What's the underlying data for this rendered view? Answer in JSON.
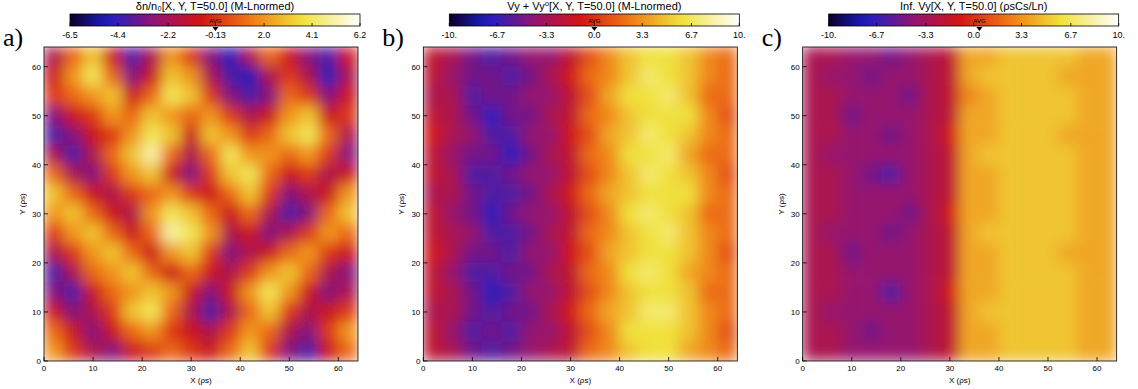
{
  "chart_data": [
    {
      "type": "heatmap",
      "label": "a)",
      "title": "δn/n₀[X, Y, T=50.0] (M-Lnormed)",
      "xlabel": "X (ρs)",
      "ylabel": "Y (ρs)",
      "xlim": [
        0,
        64
      ],
      "ylim": [
        0,
        64
      ],
      "xticks": [
        0,
        10,
        20,
        30,
        40,
        50,
        60
      ],
      "yticks": [
        0,
        10,
        20,
        30,
        40,
        50,
        60
      ],
      "colorbar": {
        "range": [
          -6.5,
          6.2
        ],
        "ticks": [
          -6.5,
          -4.4,
          -2.2,
          -0.13,
          {
            "value": 2.0,
            "label": "2.0"
          },
          4.1,
          6.2
        ],
        "avg": -0.13,
        "avg_label": "AVG"
      },
      "cells": [
        [
          -2,
          1,
          3,
          -1,
          -4,
          -2,
          2,
          0,
          -3,
          -5,
          -2,
          1,
          -1,
          -3,
          -4,
          -1
        ],
        [
          -1,
          2,
          4,
          1,
          -3,
          -1,
          3,
          2,
          -2,
          -4,
          -5,
          -2,
          0,
          -2,
          -5,
          -2
        ],
        [
          0,
          1,
          2,
          3,
          -1,
          1,
          4,
          3,
          0,
          -3,
          -4,
          -3,
          1,
          0,
          -3,
          -1
        ],
        [
          -3,
          -1,
          0,
          2,
          1,
          3,
          2,
          1,
          2,
          0,
          -2,
          -1,
          2,
          3,
          -1,
          0
        ],
        [
          -4,
          -3,
          -1,
          0,
          2,
          4,
          3,
          -1,
          3,
          2,
          0,
          1,
          3,
          4,
          1,
          -2
        ],
        [
          -2,
          -4,
          -2,
          1,
          3,
          5,
          1,
          -2,
          1,
          4,
          2,
          2,
          1,
          2,
          0,
          -3
        ],
        [
          1,
          -2,
          -3,
          0,
          2,
          3,
          -1,
          -3,
          0,
          3,
          4,
          1,
          -1,
          0,
          -2,
          -1
        ],
        [
          3,
          1,
          -1,
          -2,
          0,
          1,
          2,
          0,
          -1,
          1,
          3,
          0,
          -3,
          -2,
          -1,
          2
        ],
        [
          2,
          3,
          1,
          -1,
          -2,
          2,
          4,
          3,
          1,
          -1,
          1,
          -2,
          -4,
          -3,
          1,
          3
        ],
        [
          0,
          2,
          3,
          1,
          -1,
          1,
          5,
          4,
          2,
          -2,
          -1,
          -3,
          -2,
          0,
          2,
          1
        ],
        [
          -2,
          0,
          2,
          3,
          1,
          -1,
          2,
          3,
          0,
          -3,
          -2,
          -1,
          1,
          2,
          0,
          -1
        ],
        [
          -4,
          -2,
          1,
          2,
          3,
          1,
          -1,
          1,
          -1,
          -2,
          0,
          2,
          3,
          1,
          -2,
          -3
        ],
        [
          -3,
          -4,
          -1,
          1,
          2,
          3,
          2,
          -1,
          -3,
          -1,
          2,
          4,
          2,
          -1,
          -3,
          -2
        ],
        [
          -1,
          -3,
          -2,
          0,
          3,
          4,
          1,
          -2,
          -4,
          -2,
          1,
          3,
          0,
          -2,
          -1,
          0
        ],
        [
          1,
          -1,
          -3,
          -1,
          1,
          2,
          0,
          -1,
          -2,
          0,
          2,
          1,
          -2,
          -3,
          0,
          2
        ],
        [
          2,
          0,
          -2,
          -3,
          -1,
          0,
          1,
          0,
          -1,
          1,
          3,
          0,
          -3,
          -4,
          -1,
          1
        ]
      ]
    },
    {
      "type": "heatmap",
      "label": "b)",
      "title": "Vy + Vy⁰[X, Y, T=50.0] (M-Lnormed)",
      "xlabel": "X (ρs)",
      "ylabel": "Y (ρs)",
      "xlim": [
        0,
        64
      ],
      "ylim": [
        0,
        64
      ],
      "xticks": [
        0,
        10,
        20,
        30,
        40,
        50,
        60
      ],
      "yticks": [
        0,
        10,
        20,
        30,
        40,
        50,
        60
      ],
      "colorbar": {
        "range": [
          -10,
          10
        ],
        "ticks": [
          {
            "value": -10,
            "label": "-10."
          },
          -6.7,
          -3.3,
          {
            "value": 0,
            "label": "0.0"
          },
          3.3,
          6.7,
          {
            "value": 10,
            "label": "10."
          }
        ],
        "avg": 0,
        "avg_label": "AVG"
      },
      "cells": [
        [
          -2,
          -3,
          -5,
          -6,
          -5,
          -4,
          -4,
          -2,
          1,
          3,
          5,
          6,
          6,
          5,
          3,
          2
        ],
        [
          -2,
          -4,
          -5,
          -5,
          -6,
          -5,
          -3,
          -1,
          2,
          3,
          5,
          7,
          6,
          5,
          3,
          2
        ],
        [
          -3,
          -3,
          -6,
          -5,
          -5,
          -4,
          -4,
          -2,
          1,
          4,
          6,
          6,
          7,
          5,
          2,
          2
        ],
        [
          -2,
          -3,
          -5,
          -7,
          -5,
          -5,
          -3,
          -2,
          2,
          3,
          5,
          6,
          6,
          6,
          3,
          1
        ],
        [
          -1,
          -3,
          -4,
          -6,
          -6,
          -4,
          -4,
          -1,
          1,
          4,
          5,
          7,
          6,
          5,
          3,
          2
        ],
        [
          -2,
          -4,
          -5,
          -5,
          -7,
          -5,
          -3,
          -2,
          2,
          3,
          6,
          6,
          7,
          4,
          2,
          2
        ],
        [
          -2,
          -3,
          -6,
          -6,
          -5,
          -4,
          -4,
          -2,
          1,
          3,
          5,
          7,
          6,
          5,
          3,
          1
        ],
        [
          -3,
          -3,
          -5,
          -6,
          -6,
          -5,
          -3,
          -1,
          2,
          4,
          5,
          6,
          6,
          6,
          3,
          2
        ],
        [
          -2,
          -4,
          -5,
          -7,
          -5,
          -4,
          -4,
          -2,
          1,
          3,
          6,
          7,
          6,
          5,
          2,
          2
        ],
        [
          -2,
          -3,
          -4,
          -6,
          -6,
          -5,
          -3,
          -2,
          2,
          3,
          5,
          6,
          7,
          5,
          3,
          2
        ],
        [
          -1,
          -3,
          -5,
          -5,
          -6,
          -4,
          -4,
          -1,
          1,
          4,
          5,
          6,
          6,
          5,
          3,
          1
        ],
        [
          -2,
          -4,
          -6,
          -6,
          -5,
          -5,
          -3,
          -2,
          2,
          3,
          6,
          7,
          6,
          4,
          3,
          2
        ],
        [
          -2,
          -3,
          -5,
          -7,
          -6,
          -4,
          -4,
          -2,
          1,
          3,
          5,
          6,
          6,
          5,
          2,
          2
        ],
        [
          -3,
          -3,
          -5,
          -6,
          -5,
          -5,
          -3,
          -1,
          2,
          4,
          5,
          7,
          7,
          5,
          3,
          2
        ],
        [
          -2,
          -4,
          -6,
          -5,
          -6,
          -4,
          -4,
          -2,
          1,
          3,
          6,
          6,
          6,
          5,
          3,
          1
        ],
        [
          -2,
          -3,
          -5,
          -6,
          -5,
          -4,
          -3,
          -2,
          2,
          3,
          5,
          6,
          6,
          4,
          3,
          2
        ]
      ]
    },
    {
      "type": "heatmap",
      "label": "c)",
      "title": "Inf. Vy[X, Y, T=50.0] (ρsCs/Ln)",
      "xlabel": "X (ρs)",
      "ylabel": "Y (ρs)",
      "xlim": [
        0,
        64
      ],
      "ylim": [
        0,
        64
      ],
      "xticks": [
        0,
        10,
        20,
        30,
        40,
        50,
        60
      ],
      "yticks": [
        0,
        10,
        20,
        30,
        40,
        50,
        60
      ],
      "colorbar": {
        "range": [
          -10,
          10
        ],
        "ticks": [
          {
            "value": -10,
            "label": "-10."
          },
          -6.7,
          -3.3,
          {
            "value": 0,
            "label": "0.0"
          },
          3.3,
          6.7,
          {
            "value": 10,
            "label": "10."
          }
        ],
        "avg": 0.4,
        "avg_label": "AVG"
      },
      "cells": [
        [
          -3,
          -3,
          -4,
          -4,
          -5,
          -4,
          -3,
          -2,
          4,
          4,
          5,
          5,
          5,
          5,
          4,
          4
        ],
        [
          -3,
          -4,
          -4,
          -5,
          -4,
          -4,
          -3,
          -2,
          4,
          5,
          5,
          5,
          5,
          4,
          4,
          4
        ],
        [
          -3,
          -3,
          -4,
          -4,
          -4,
          -5,
          -3,
          -2,
          3,
          4,
          5,
          5,
          5,
          5,
          4,
          4
        ],
        [
          -3,
          -3,
          -5,
          -4,
          -4,
          -4,
          -3,
          -2,
          4,
          4,
          5,
          5,
          5,
          5,
          4,
          4
        ],
        [
          -3,
          -3,
          -4,
          -4,
          -5,
          -4,
          -3,
          -1,
          4,
          4,
          5,
          5,
          5,
          4,
          4,
          4
        ],
        [
          -3,
          -4,
          -4,
          -4,
          -4,
          -4,
          -3,
          -2,
          4,
          5,
          5,
          5,
          5,
          5,
          4,
          4
        ],
        [
          -3,
          -3,
          -4,
          -5,
          -6,
          -4,
          -3,
          -2,
          4,
          4,
          5,
          5,
          5,
          5,
          4,
          4
        ],
        [
          -3,
          -3,
          -4,
          -4,
          -4,
          -4,
          -3,
          -2,
          4,
          4,
          5,
          5,
          5,
          5,
          4,
          4
        ],
        [
          -3,
          -3,
          -4,
          -4,
          -4,
          -5,
          -3,
          -1,
          4,
          4,
          5,
          5,
          5,
          5,
          4,
          4
        ],
        [
          -3,
          -4,
          -4,
          -4,
          -5,
          -4,
          -3,
          -2,
          4,
          5,
          5,
          5,
          5,
          5,
          4,
          4
        ],
        [
          -3,
          -3,
          -5,
          -4,
          -4,
          -4,
          -3,
          -2,
          4,
          4,
          5,
          5,
          5,
          4,
          4,
          4
        ],
        [
          -3,
          -3,
          -4,
          -4,
          -4,
          -4,
          -3,
          -2,
          4,
          4,
          5,
          5,
          5,
          5,
          4,
          4
        ],
        [
          -3,
          -3,
          -4,
          -4,
          -6,
          -4,
          -3,
          -1,
          4,
          4,
          5,
          5,
          5,
          5,
          4,
          4
        ],
        [
          -3,
          -4,
          -4,
          -4,
          -4,
          -4,
          -3,
          -2,
          4,
          5,
          5,
          5,
          5,
          5,
          4,
          4
        ],
        [
          -3,
          -3,
          -4,
          -5,
          -4,
          -4,
          -3,
          -2,
          4,
          4,
          5,
          5,
          5,
          5,
          4,
          4
        ],
        [
          -3,
          -3,
          -4,
          -4,
          -4,
          -4,
          -3,
          -2,
          4,
          4,
          5,
          5,
          5,
          5,
          4,
          4
        ]
      ]
    }
  ]
}
